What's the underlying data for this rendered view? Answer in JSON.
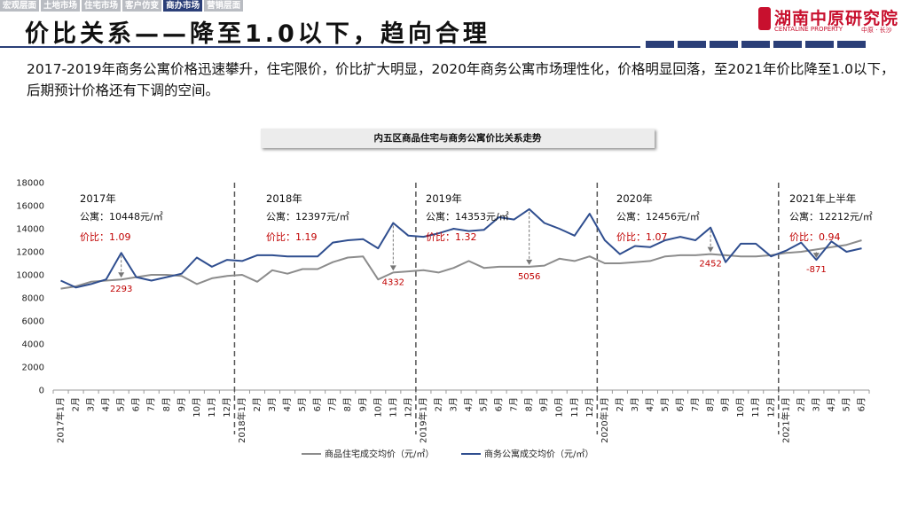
{
  "nav": {
    "items": [
      "宏观层面",
      "土地市场",
      "住宅市场",
      "客户仿变",
      "商办市场",
      "营销层面"
    ],
    "active_index": 4
  },
  "header": {
    "title": "价比关系——降至1.0以下，趋向合理"
  },
  "logo": {
    "name": "湖南中原研究院",
    "en": "CENTALINE PROPERTY",
    "city": "中原 · 长沙"
  },
  "intro": {
    "text": "2017-2019年商务公寓价格迅速攀升，住宅限价，价比扩大明显，2020年商务公寓市场理性化，价格明显回落，至2021年价比降至1.0以下，后期预计价格还有下调的空间。"
  },
  "colors": {
    "accent": "#2b3f78",
    "residential": "#8c8c8c",
    "apartment": "#2f4e8f",
    "ratio_text": "#c00000"
  },
  "chart_data": {
    "type": "line",
    "title": "内五区商品住宅与商务公寓价比关系走势",
    "ylim": [
      0,
      18000
    ],
    "yticks": [
      0,
      2000,
      4000,
      6000,
      8000,
      10000,
      12000,
      14000,
      16000,
      18000
    ],
    "categories": [
      "2017年1月",
      "2月",
      "3月",
      "4月",
      "5月",
      "6月",
      "7月",
      "8月",
      "9月",
      "10月",
      "11月",
      "12月",
      "2018年1月",
      "2月",
      "3月",
      "4月",
      "5月",
      "6月",
      "7月",
      "8月",
      "9月",
      "10月",
      "11月",
      "12月",
      "2019年1月",
      "2月",
      "3月",
      "4月",
      "5月",
      "6月",
      "7月",
      "8月",
      "9月",
      "10月",
      "11月",
      "12月",
      "2020年1月",
      "2月",
      "3月",
      "4月",
      "5月",
      "6月",
      "7月",
      "8月",
      "9月",
      "10月",
      "11月",
      "12月",
      "2021年1月",
      "2月",
      "3月",
      "4月",
      "5月",
      "6月"
    ],
    "series": [
      {
        "name": "商品住宅成交均价（元/㎡）",
        "values": [
          8800,
          9000,
          9400,
          9500,
          9600,
          9800,
          10000,
          10000,
          9900,
          9200,
          9700,
          9900,
          10000,
          9400,
          10400,
          10100,
          10500,
          10500,
          11100,
          11500,
          11600,
          9600,
          10200,
          10300,
          10400,
          10200,
          10600,
          11200,
          10600,
          10700,
          10700,
          10700,
          10800,
          11400,
          11200,
          11600,
          11000,
          11000,
          11100,
          11200,
          11600,
          11700,
          11700,
          11800,
          11700,
          11600,
          11600,
          11700,
          11900,
          12000,
          12200,
          12400,
          12600,
          13000
        ]
      },
      {
        "name": "商务公寓成交均价（元/㎡）",
        "values": [
          9500,
          8900,
          9200,
          9600,
          11900,
          9800,
          9500,
          9800,
          10100,
          11500,
          10700,
          11300,
          11200,
          11700,
          11700,
          11600,
          11600,
          11600,
          12800,
          13000,
          13100,
          12300,
          14500,
          13400,
          13300,
          13600,
          14000,
          13800,
          13900,
          15000,
          14800,
          15700,
          14500,
          14000,
          13400,
          15300,
          13000,
          11800,
          12500,
          12400,
          13000,
          13300,
          13000,
          14100,
          11100,
          12700,
          12700,
          11600,
          12100,
          12800,
          11300,
          12900,
          12000,
          12300
        ]
      }
    ],
    "segments": [
      {
        "label": "2017年",
        "price": "公寓：10448元/㎡",
        "ratio": "价比：1.09"
      },
      {
        "label": "2018年",
        "price": "公寓：12397元/㎡",
        "ratio": "价比：1.19"
      },
      {
        "label": "2019年",
        "price": "公寓：14353元/㎡",
        "ratio": "价比：1.32"
      },
      {
        "label": "2020年",
        "price": "公寓：12456元/㎡",
        "ratio": "价比：1.07"
      },
      {
        "label": "2021年上半年",
        "price": "公寓：12212元/㎡",
        "ratio": "价比：0.94"
      }
    ],
    "annotations": [
      {
        "index": 4,
        "label": "2293"
      },
      {
        "index": 22,
        "label": "4332"
      },
      {
        "index": 31,
        "label": "5056"
      },
      {
        "index": 43,
        "label": "2452"
      },
      {
        "index": 50,
        "label": "-871"
      }
    ]
  }
}
